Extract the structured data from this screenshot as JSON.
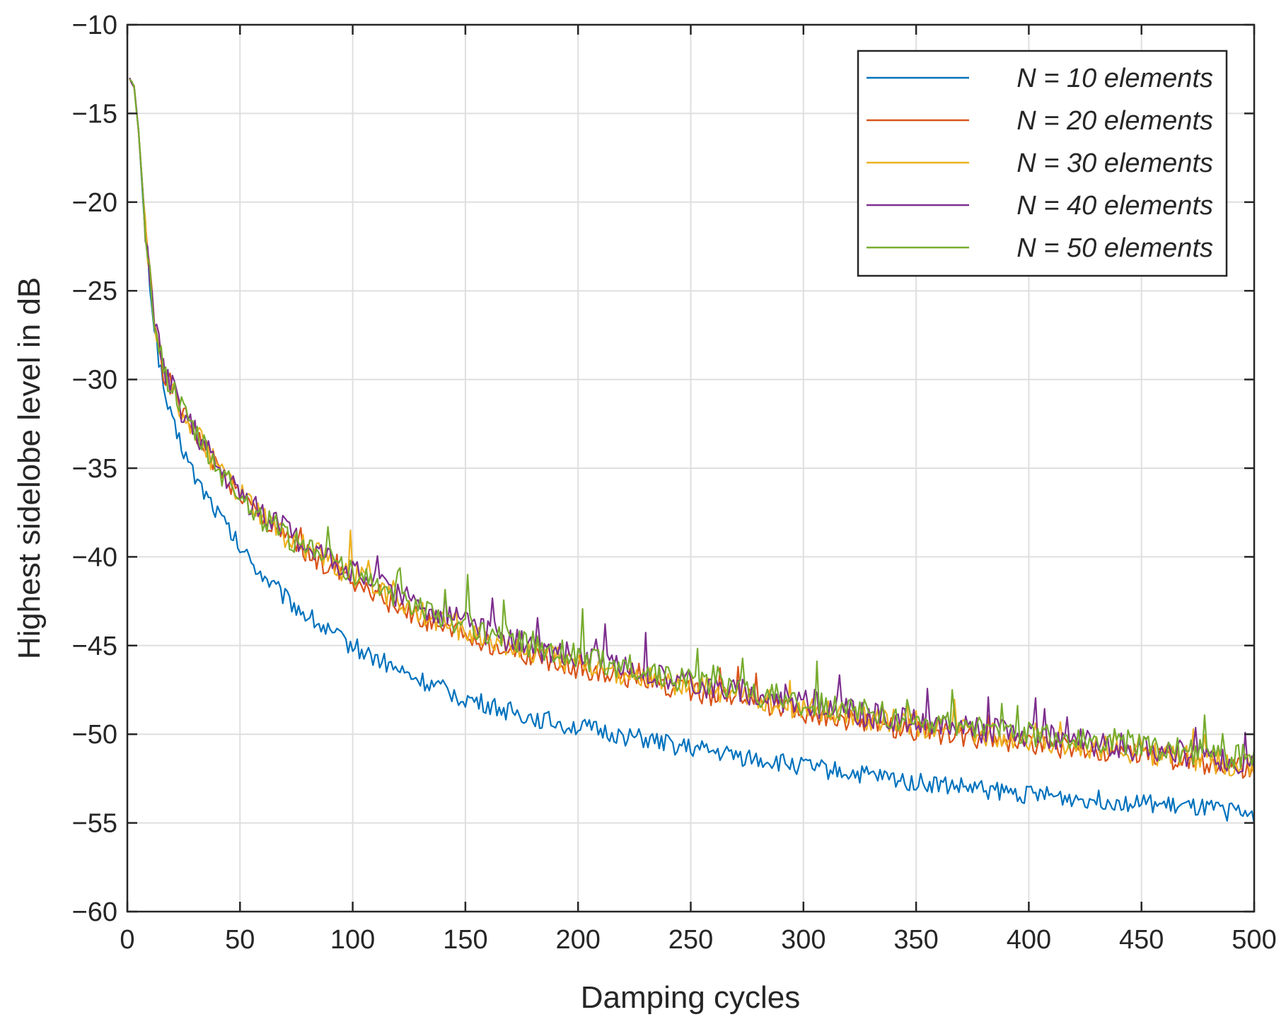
{
  "chart_data": {
    "type": "line",
    "title": "",
    "xlabel": "Damping cycles",
    "ylabel": "Highest sidelobe level in dB",
    "xlim": [
      0,
      500
    ],
    "ylim": [
      -60,
      -10
    ],
    "xticks": [
      0,
      50,
      100,
      150,
      200,
      250,
      300,
      350,
      400,
      450,
      500
    ],
    "yticks": [
      -10,
      -15,
      -20,
      -25,
      -30,
      -35,
      -40,
      -45,
      -50,
      -55,
      -60
    ],
    "xtick_labels": [
      "0",
      "50",
      "100",
      "150",
      "200",
      "250",
      "300",
      "350",
      "400",
      "450",
      "500"
    ],
    "ytick_labels": [
      "−10",
      "−15",
      "−20",
      "−25",
      "−30",
      "−35",
      "−40",
      "−45",
      "−50",
      "−55",
      "−60"
    ],
    "grid": true,
    "legend_position": "top-right",
    "series": [
      {
        "name": "N = 10 elements",
        "color": "#0072BD",
        "x": [
          1,
          3,
          5,
          8,
          12,
          16,
          20,
          25,
          30,
          40,
          50,
          60,
          70,
          80,
          90,
          100,
          125,
          150,
          175,
          200,
          250,
          300,
          350,
          400,
          450,
          500
        ],
        "y": [
          -13,
          -13.5,
          -16,
          -22,
          -27,
          -30.5,
          -32.5,
          -34,
          -35.5,
          -37.5,
          -39.5,
          -41,
          -42.3,
          -43.3,
          -44.3,
          -45,
          -46.7,
          -48,
          -48.9,
          -49.6,
          -50.8,
          -51.8,
          -52.7,
          -53.4,
          -53.9,
          -54.5
        ],
        "noise": 0.55
      },
      {
        "name": "N = 20 elements",
        "color": "#D95319",
        "x": [
          1,
          3,
          5,
          8,
          12,
          16,
          20,
          25,
          30,
          40,
          50,
          60,
          70,
          80,
          90,
          100,
          125,
          150,
          175,
          200,
          250,
          300,
          350,
          400,
          450,
          500
        ],
        "y": [
          -13,
          -13.5,
          -16,
          -21.5,
          -26.5,
          -29.5,
          -30.5,
          -32,
          -33,
          -35,
          -36.5,
          -38,
          -39,
          -39.8,
          -40.6,
          -41.3,
          -43.2,
          -44.5,
          -45.5,
          -46.3,
          -47.6,
          -48.8,
          -49.8,
          -50.6,
          -51.2,
          -52
        ],
        "noise": 0.6
      },
      {
        "name": "N = 30 elements",
        "color": "#EDB120",
        "x": [
          1,
          3,
          5,
          8,
          12,
          16,
          20,
          25,
          30,
          40,
          50,
          60,
          70,
          80,
          90,
          100,
          125,
          150,
          175,
          200,
          250,
          300,
          350,
          400,
          450,
          500
        ],
        "y": [
          -13,
          -13.5,
          -16,
          -21.5,
          -26.5,
          -29.5,
          -30.5,
          -32,
          -33,
          -35,
          -36.5,
          -37.8,
          -38.8,
          -39.5,
          -40.3,
          -41,
          -42.8,
          -44.2,
          -45.2,
          -46,
          -47.3,
          -48.5,
          -49.5,
          -50.3,
          -51,
          -51.8
        ],
        "noise": 0.7
      },
      {
        "name": "N = 40 elements",
        "color": "#7E2F8E",
        "x": [
          1,
          3,
          5,
          8,
          12,
          16,
          20,
          25,
          30,
          40,
          50,
          60,
          70,
          80,
          90,
          100,
          125,
          150,
          175,
          200,
          250,
          300,
          350,
          400,
          450,
          500
        ],
        "y": [
          -13,
          -13.5,
          -16,
          -21.5,
          -26.5,
          -29.5,
          -30.5,
          -32,
          -33,
          -35,
          -36.5,
          -37.5,
          -38.5,
          -39.3,
          -40,
          -40.8,
          -42.5,
          -43.8,
          -44.9,
          -45.7,
          -47.1,
          -48.3,
          -49.3,
          -50.1,
          -50.8,
          -51.6
        ],
        "noise": 0.75
      },
      {
        "name": "N = 50 elements",
        "color": "#77AC30",
        "x": [
          1,
          3,
          5,
          8,
          12,
          16,
          20,
          25,
          30,
          40,
          50,
          60,
          70,
          80,
          90,
          100,
          125,
          150,
          175,
          200,
          250,
          300,
          350,
          400,
          450,
          500
        ],
        "y": [
          -13,
          -13.5,
          -16,
          -21.5,
          -26.5,
          -29.5,
          -30.5,
          -32,
          -33,
          -35,
          -36.5,
          -37.8,
          -38.8,
          -39.5,
          -40.2,
          -40.9,
          -42.5,
          -43.8,
          -44.8,
          -45.6,
          -47,
          -48.2,
          -49.2,
          -50,
          -50.7,
          -51.3
        ],
        "noise": 0.75
      }
    ]
  }
}
